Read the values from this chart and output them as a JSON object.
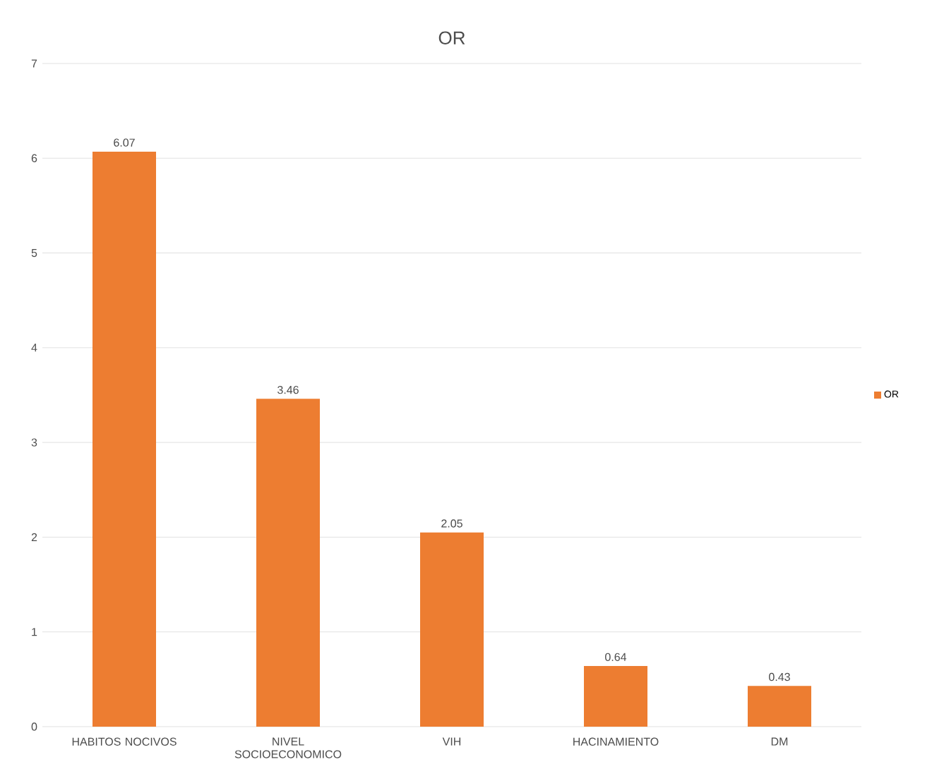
{
  "chart_data": {
    "type": "bar",
    "title": "OR",
    "categories": [
      "HABITOS NOCIVOS",
      "NIVEL SOCIOECONOMICO",
      "VIH",
      "HACINAMIENTO",
      "DM"
    ],
    "series": [
      {
        "name": "OR",
        "color": "#ed7d31",
        "values": [
          6.07,
          3.46,
          2.05,
          0.64,
          0.43
        ]
      }
    ],
    "ylim": [
      0,
      7
    ],
    "yticks": [
      0,
      1,
      2,
      3,
      4,
      5,
      6,
      7
    ],
    "grid": "y",
    "legend": "right",
    "data_labels": true
  }
}
